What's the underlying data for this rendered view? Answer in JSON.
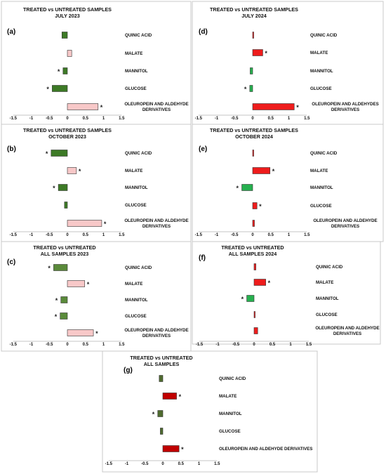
{
  "colors": {
    "green_dark": "#3d7a26",
    "green_light": "#5a8a3a",
    "green_bright": "#27b04f",
    "pink": "#f8c8c8",
    "red": "#ee1c1c",
    "dark_red": "#c00000",
    "olive": "#4f6b2f"
  },
  "chart_data": [
    {
      "id": "a",
      "label": "(a)",
      "type": "bar",
      "orientation": "horizontal",
      "title_lines": [
        "TREATED vs UNTREATED SAMPLES",
        "JULY 2023"
      ],
      "categories": [
        "QUINIC ACID",
        "MALATE",
        "MANNITOL",
        "GLUCOSE",
        "OLEUROPEIN AND ALDEHYDE DERIVATIVES"
      ],
      "values": [
        -0.15,
        0.12,
        -0.12,
        -0.42,
        0.85
      ],
      "significant": [
        false,
        false,
        true,
        true,
        true
      ],
      "bar_colors": [
        "green_dark",
        "pink",
        "green_dark",
        "green_dark",
        "pink"
      ],
      "xticks": [
        "-1.5",
        "-1",
        "-0.5",
        "0",
        "0.5",
        "1",
        "1.5"
      ],
      "xlim": [
        -1.5,
        1.5
      ]
    },
    {
      "id": "d",
      "label": "(d)",
      "type": "bar",
      "orientation": "horizontal",
      "title_lines": [
        "TREATED vs UNTREATED SAMPLES",
        "JULY 2024"
      ],
      "categories": [
        "QUINIC ACID",
        "MALATE",
        "MANNITOL",
        "GLUCOSE",
        "OLEUROPEIN AND ALDEHYDES DERIVATIVES"
      ],
      "values": [
        0.03,
        0.28,
        -0.07,
        -0.08,
        1.15
      ],
      "significant": [
        false,
        true,
        false,
        true,
        true
      ],
      "bar_colors": [
        "red",
        "red",
        "green_bright",
        "green_bright",
        "red"
      ],
      "xticks": [
        "-1.5",
        "-1",
        "-0.5",
        "0",
        "0.5",
        "1",
        "1.5"
      ],
      "xlim": [
        -1.5,
        1.5
      ]
    },
    {
      "id": "b",
      "label": "(b)",
      "type": "bar",
      "orientation": "horizontal",
      "title_lines": [
        "TREATED vs UNTREATED SAMPLES",
        "OCTOBER 2023"
      ],
      "categories": [
        "QUINIC ACID",
        "MALATE",
        "MANNITOL",
        "GLUCOSE",
        "OLEUROPEIN AND ALDEHYDE DERIVATIVES"
      ],
      "values": [
        -0.45,
        0.25,
        -0.25,
        -0.08,
        0.95
      ],
      "significant": [
        true,
        true,
        true,
        false,
        true
      ],
      "bar_colors": [
        "green_dark",
        "pink",
        "green_dark",
        "green_dark",
        "pink"
      ],
      "xticks": [
        "-1.5",
        "-1",
        "-0.5",
        "0",
        "0.5",
        "1",
        "1.5"
      ],
      "xlim": [
        -1.5,
        1.5
      ]
    },
    {
      "id": "e",
      "label": "(e)",
      "type": "bar",
      "orientation": "horizontal",
      "title_lines": [
        "TREATED vs UNTREATED SAMPLES",
        "OCTOBER 2024"
      ],
      "categories": [
        "QUINIC ACID",
        "MALATE",
        "MANNITOL",
        "GLUCOSE",
        "OLEUROPEIN AND ALDEHYDE DERIVATIVES"
      ],
      "values": [
        0.03,
        0.48,
        -0.3,
        0.12,
        0.05
      ],
      "significant": [
        false,
        true,
        true,
        true,
        false
      ],
      "bar_colors": [
        "red",
        "red",
        "green_bright",
        "red",
        "red"
      ],
      "xticks": [
        "-1.5",
        "-1",
        "-0.5",
        "0",
        "0.5",
        "1",
        "1.5"
      ],
      "xlim": [
        -1.5,
        1.5
      ]
    },
    {
      "id": "c",
      "label": "(c)",
      "type": "bar",
      "orientation": "horizontal",
      "title_lines": [
        "TREATED vs UNTREATED",
        "ALL SAMPLES 2023"
      ],
      "categories": [
        "QUINIC ACID",
        "MALATE",
        "MANNITOL",
        "GLUCOSE",
        "OLEUROPEIN AND ALDEHYDE DERIVATIVES"
      ],
      "values": [
        -0.38,
        0.48,
        -0.18,
        -0.2,
        0.72
      ],
      "significant": [
        true,
        true,
        true,
        true,
        true
      ],
      "bar_colors": [
        "green_light",
        "pink",
        "green_light",
        "green_light",
        "pink"
      ],
      "xticks": [
        "-1.5",
        "-1",
        "-0.5",
        "0",
        "0.5",
        "1",
        "1.5"
      ],
      "xlim": [
        -1.5,
        1.5
      ]
    },
    {
      "id": "f",
      "label": "(f)",
      "type": "bar",
      "orientation": "horizontal",
      "title_lines": [
        "TREATED vs UNTREATED",
        "ALL SAMPLES 2024"
      ],
      "categories": [
        "QUINIC ACID",
        "MALATE",
        "MANNITOL",
        "GLUCOSE",
        "OLEUROPEIN AND ALDEHYDE DERIVATIVES"
      ],
      "values": [
        0.05,
        0.32,
        -0.2,
        0.03,
        0.1
      ],
      "significant": [
        false,
        true,
        true,
        false,
        false
      ],
      "bar_colors": [
        "red",
        "red",
        "green_bright",
        "red",
        "red"
      ],
      "xticks": [
        "-1.5",
        "-1",
        "-0.5",
        "0",
        "0.5",
        "1",
        "1.5"
      ],
      "xlim": [
        -1.5,
        1.5
      ]
    },
    {
      "id": "g",
      "label": "(g)",
      "type": "bar",
      "orientation": "horizontal",
      "title_lines": [
        "TREATED vs UNTREATED",
        "ALL SAMPLES"
      ],
      "categories": [
        "QUINIC ACID",
        "MALATE",
        "MANNITOL",
        "GLUCOSE",
        "OLEUROPEIN AND ALDEHYDE DERIVATIVES"
      ],
      "values": [
        -0.1,
        0.38,
        -0.14,
        -0.07,
        0.45
      ],
      "significant": [
        false,
        true,
        true,
        false,
        true
      ],
      "bar_colors": [
        "olive",
        "dark_red",
        "olive",
        "olive",
        "dark_red"
      ],
      "xticks": [
        "-1.5",
        "-1",
        "-0.5",
        "0",
        "0.5",
        "1",
        "1.5"
      ],
      "xlim": [
        -1.5,
        1.5
      ]
    }
  ]
}
